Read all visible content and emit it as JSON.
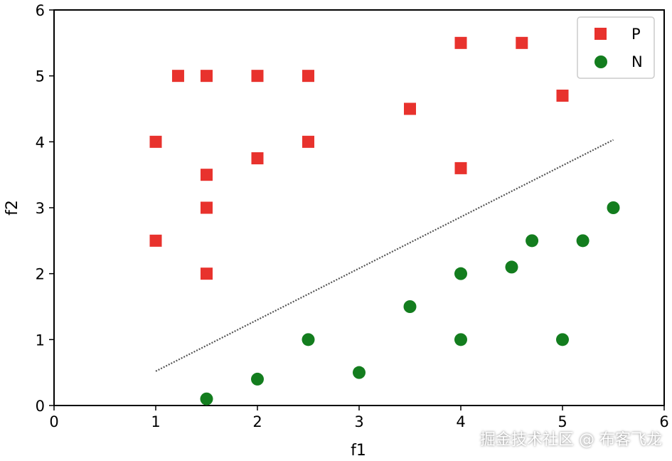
{
  "chart_data": {
    "type": "scatter",
    "title": "",
    "xlabel": "f1",
    "ylabel": "f2",
    "xlim": [
      0,
      6
    ],
    "ylim": [
      0,
      6
    ],
    "xticks": [
      "0",
      "1",
      "2",
      "3",
      "4",
      "5",
      "6"
    ],
    "yticks": [
      "0",
      "1",
      "2",
      "3",
      "4",
      "5",
      "6"
    ],
    "grid": false,
    "legend_position": "top-right",
    "series": [
      {
        "name": "P",
        "marker": "square",
        "color": "#e8322d",
        "points": [
          [
            1.0,
            4.0
          ],
          [
            1.0,
            2.5
          ],
          [
            1.22,
            5.0
          ],
          [
            1.5,
            5.0
          ],
          [
            1.5,
            3.5
          ],
          [
            1.5,
            3.0
          ],
          [
            1.5,
            2.0
          ],
          [
            2.0,
            5.0
          ],
          [
            2.0,
            3.75
          ],
          [
            2.5,
            5.0
          ],
          [
            2.5,
            4.0
          ],
          [
            3.5,
            4.5
          ],
          [
            4.0,
            5.5
          ],
          [
            4.0,
            3.6
          ],
          [
            4.6,
            5.5
          ],
          [
            5.0,
            4.7
          ]
        ]
      },
      {
        "name": "N",
        "marker": "circle",
        "color": "#137d1e",
        "points": [
          [
            1.5,
            0.1
          ],
          [
            2.0,
            0.4
          ],
          [
            2.5,
            1.0
          ],
          [
            3.0,
            0.5
          ],
          [
            3.5,
            1.5
          ],
          [
            4.0,
            2.0
          ],
          [
            4.0,
            1.0
          ],
          [
            4.5,
            2.1
          ],
          [
            4.7,
            2.5
          ],
          [
            5.0,
            1.0
          ],
          [
            5.2,
            2.5
          ],
          [
            5.5,
            3.0
          ]
        ]
      }
    ],
    "decision_line": {
      "style": "dotted",
      "color": "#555555",
      "points": [
        [
          1.0,
          0.52
        ],
        [
          5.5,
          4.03
        ]
      ]
    }
  },
  "watermark": "掘金技术社区 @ 布客飞龙"
}
